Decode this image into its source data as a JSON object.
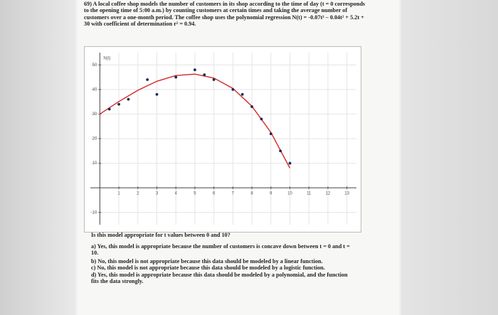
{
  "problem": "69) A local coffee shop models the number of customers in its shop according to the time of day (t = 0 corresponds to the opening time of 5:00 a.m.) by counting customers at certain times and taking the average number of customers over a one-month period. The coffee shop uses the polynomial regression N(t) = -0.07t³ – 0.04t² + 5.2t + 30 with coefficient of determination r² = 0.94.",
  "chart_data": {
    "type": "scatter",
    "y_label": "N(t)",
    "x": [
      0.5,
      1,
      1.5,
      2.5,
      3,
      4,
      5,
      5.5,
      6,
      7,
      7.5,
      8,
      8.5,
      9,
      9.5,
      10
    ],
    "values": [
      32,
      34,
      36,
      44,
      38,
      45,
      48,
      46,
      44,
      40,
      38,
      33,
      28,
      22,
      15,
      10
    ],
    "color": "#1a2a55",
    "curve": {
      "x": [
        0,
        1,
        2,
        3,
        4,
        5,
        6,
        7,
        8,
        9,
        10
      ],
      "values": [
        30,
        35.09,
        39.68,
        43.35,
        45.68,
        46.25,
        44.64,
        40.43,
        33.2,
        22.53,
        8
      ],
      "color": "#d42a2a"
    },
    "xlim": [
      -0.5,
      13.5
    ],
    "ylim": [
      -15,
      55
    ],
    "xticks": [
      1,
      2,
      3,
      4,
      5,
      6,
      7,
      8,
      9,
      10,
      11,
      12,
      13
    ],
    "yticks": [
      -10,
      10,
      20,
      30,
      40,
      50
    ]
  },
  "question": "Is this model appropriate for t values between 0 and 10?",
  "options": [
    "a) Yes, this model is appropriate because the number of customers is concave down between t = 0 and t = 10.",
    "b) No, this model is not appropriate because this data should be modeled by a linear function.",
    "c) No, this model is not appropriate because this data should be modeled by a logistic function.",
    "d) Yes, this model is appropriate because this data should be modeled by a polynomial, and the function fits the data strongly."
  ]
}
